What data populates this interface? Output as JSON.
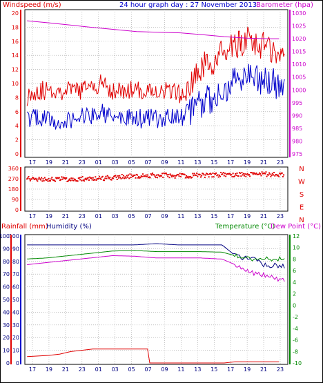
{
  "title": "24 hour graph day : 27 November 2013",
  "colors": {
    "red": "#e00000",
    "blue": "#0000cc",
    "magenta": "#cc00cc",
    "green": "#008800",
    "darkblue": "#000080",
    "grid": "#a0a0a0"
  },
  "x_ticks": [
    "17",
    "19",
    "21",
    "23",
    "01",
    "03",
    "05",
    "07",
    "09",
    "11",
    "13",
    "15",
    "17",
    "19",
    "21",
    "23"
  ],
  "chart_data": [
    {
      "type": "line",
      "panel": "wind-barometer",
      "left_label": "Windspeed (m/s)",
      "right_label": "Barometer (hpa)",
      "left_ticks": [
        "20",
        "18",
        "16",
        "14",
        "12",
        "10",
        "8",
        "6",
        "4",
        "2",
        "0"
      ],
      "left_ylim": [
        0,
        20
      ],
      "right_ticks": [
        "1030",
        "1025",
        "1020",
        "1015",
        "1010",
        "1005",
        "1000",
        "995",
        "990",
        "985",
        "980",
        "975"
      ],
      "right_ylim": [
        975,
        1030
      ],
      "series": [
        {
          "name": "Windspeed (m/s)",
          "axis": "left",
          "color": "#e00000",
          "points": [
            [
              0,
              8
            ],
            [
              1,
              9
            ],
            [
              2,
              9
            ],
            [
              3,
              9
            ],
            [
              4,
              9
            ],
            [
              5,
              9
            ],
            [
              6,
              9.5
            ],
            [
              7,
              10
            ],
            [
              8,
              9
            ],
            [
              9,
              9
            ],
            [
              10,
              9
            ],
            [
              11,
              9
            ],
            [
              12,
              9
            ],
            [
              13,
              9
            ],
            [
              14,
              8.5
            ],
            [
              15,
              9
            ],
            [
              16,
              12
            ],
            [
              17,
              13
            ],
            [
              18,
              14
            ],
            [
              19,
              15
            ],
            [
              20,
              16
            ],
            [
              21,
              16
            ],
            [
              22,
              15
            ],
            [
              23,
              14.5
            ]
          ]
        },
        {
          "name": "Gust (m/s)",
          "axis": "left",
          "color": "#0000cc",
          "points": [
            [
              0,
              5
            ],
            [
              1,
              5
            ],
            [
              2,
              5
            ],
            [
              3,
              4
            ],
            [
              4,
              5
            ],
            [
              5,
              5
            ],
            [
              6,
              5.5
            ],
            [
              7,
              6
            ],
            [
              8,
              5
            ],
            [
              9,
              5
            ],
            [
              10,
              5
            ],
            [
              11,
              5
            ],
            [
              12,
              5
            ],
            [
              13,
              5
            ],
            [
              14,
              5
            ],
            [
              15,
              6
            ],
            [
              16,
              7
            ],
            [
              17,
              8
            ],
            [
              18,
              9
            ],
            [
              19,
              10
            ],
            [
              20,
              11
            ],
            [
              21,
              11
            ],
            [
              22,
              10
            ],
            [
              23,
              10
            ]
          ]
        },
        {
          "name": "Barometer (hpa)",
          "axis": "right",
          "color": "#cc00cc",
          "points": [
            [
              0,
              1027
            ],
            [
              2,
              1026.2
            ],
            [
              4,
              1025.3
            ],
            [
              6,
              1024.4
            ],
            [
              8,
              1023.6
            ],
            [
              10,
              1022.8
            ],
            [
              12,
              1022.5
            ],
            [
              14,
              1022.3
            ],
            [
              16,
              1021.6
            ],
            [
              18,
              1020.8
            ],
            [
              20,
              1020.2
            ],
            [
              22,
              1020
            ],
            [
              23,
              1020
            ]
          ]
        }
      ]
    },
    {
      "type": "scatter",
      "panel": "wind-direction",
      "left_ticks": [
        "360",
        "270",
        "180",
        "90",
        "0"
      ],
      "ylim": [
        0,
        360
      ],
      "right_labels": [
        "N",
        "W",
        "S",
        "E",
        "N"
      ],
      "series": [
        {
          "name": "Wind direction",
          "color": "#e00000",
          "points": [
            [
              0,
              270
            ],
            [
              2,
              268
            ],
            [
              4,
              265
            ],
            [
              6,
              270
            ],
            [
              8,
              280
            ],
            [
              10,
              295
            ],
            [
              12,
              300
            ],
            [
              14,
              295
            ],
            [
              16,
              300
            ],
            [
              18,
              305
            ],
            [
              20,
              305
            ],
            [
              22,
              310
            ],
            [
              23,
              305
            ]
          ]
        }
      ]
    },
    {
      "type": "line",
      "panel": "rain-humidity-temperature",
      "left_label_1": "Rainfall (mm)",
      "left_label_2": "Humidity (%)",
      "right_label_1": "Temperature (°C)",
      "right_label_2": "Dew Point (°C)",
      "left_ticks": [
        "100",
        "90",
        "80",
        "70",
        "60",
        "50",
        "40",
        "30",
        "20",
        "10",
        "0"
      ],
      "left_ylim": [
        0,
        100
      ],
      "right_ticks": [
        "12",
        "10",
        "8",
        "6",
        "4",
        "2",
        "0",
        "-2",
        "-4",
        "-6",
        "-8",
        "-10"
      ],
      "right_ylim": [
        -10,
        12
      ],
      "series": [
        {
          "name": "Humidity (%)",
          "axis": "left",
          "color": "#000080",
          "points": [
            [
              0,
              93
            ],
            [
              2,
              93
            ],
            [
              4,
              93
            ],
            [
              6,
              93
            ],
            [
              8,
              93
            ],
            [
              10,
              93
            ],
            [
              12,
              94
            ],
            [
              14,
              93
            ],
            [
              16,
              93
            ],
            [
              18,
              93
            ],
            [
              19,
              86
            ],
            [
              20,
              82
            ],
            [
              21,
              81
            ],
            [
              22,
              77
            ],
            [
              23,
              77
            ]
          ]
        },
        {
          "name": "Temperature (°C)",
          "axis": "right",
          "color": "#008800",
          "points": [
            [
              0,
              8
            ],
            [
              2,
              8.2
            ],
            [
              4,
              8.6
            ],
            [
              6,
              9
            ],
            [
              8,
              9.4
            ],
            [
              10,
              9.5
            ],
            [
              12,
              9.3
            ],
            [
              14,
              9.3
            ],
            [
              16,
              9.3
            ],
            [
              18,
              9.2
            ],
            [
              19,
              8.7
            ],
            [
              20,
              8.3
            ],
            [
              21,
              8
            ],
            [
              22,
              8
            ],
            [
              23,
              8
            ]
          ]
        },
        {
          "name": "Dew Point (°C)",
          "axis": "right",
          "color": "#cc00cc",
          "points": [
            [
              0,
              7
            ],
            [
              2,
              7.4
            ],
            [
              4,
              7.8
            ],
            [
              6,
              8.2
            ],
            [
              8,
              8.6
            ],
            [
              10,
              8.5
            ],
            [
              12,
              8.2
            ],
            [
              14,
              8.2
            ],
            [
              16,
              8.2
            ],
            [
              18,
              8
            ],
            [
              19,
              7.2
            ],
            [
              20,
              6.2
            ],
            [
              21,
              5.5
            ],
            [
              22,
              5.2
            ],
            [
              23,
              4.5
            ]
          ]
        },
        {
          "name": "Rainfall (mm)",
          "axis": "left",
          "color": "#e00000",
          "points": [
            [
              0,
              5
            ],
            [
              1,
              5.5
            ],
            [
              2,
              6
            ],
            [
              3,
              7
            ],
            [
              4,
              9
            ],
            [
              5,
              10
            ],
            [
              6,
              11
            ],
            [
              7,
              11
            ],
            [
              8,
              11
            ],
            [
              9,
              11
            ],
            [
              10,
              11
            ],
            [
              11,
              11
            ],
            [
              11.2,
              0
            ],
            [
              12,
              0
            ],
            [
              14,
              0
            ],
            [
              16,
              0
            ],
            [
              18,
              0
            ],
            [
              19,
              1
            ],
            [
              20,
              1
            ],
            [
              21,
              1
            ],
            [
              22,
              1
            ],
            [
              23,
              1
            ]
          ]
        }
      ]
    }
  ]
}
